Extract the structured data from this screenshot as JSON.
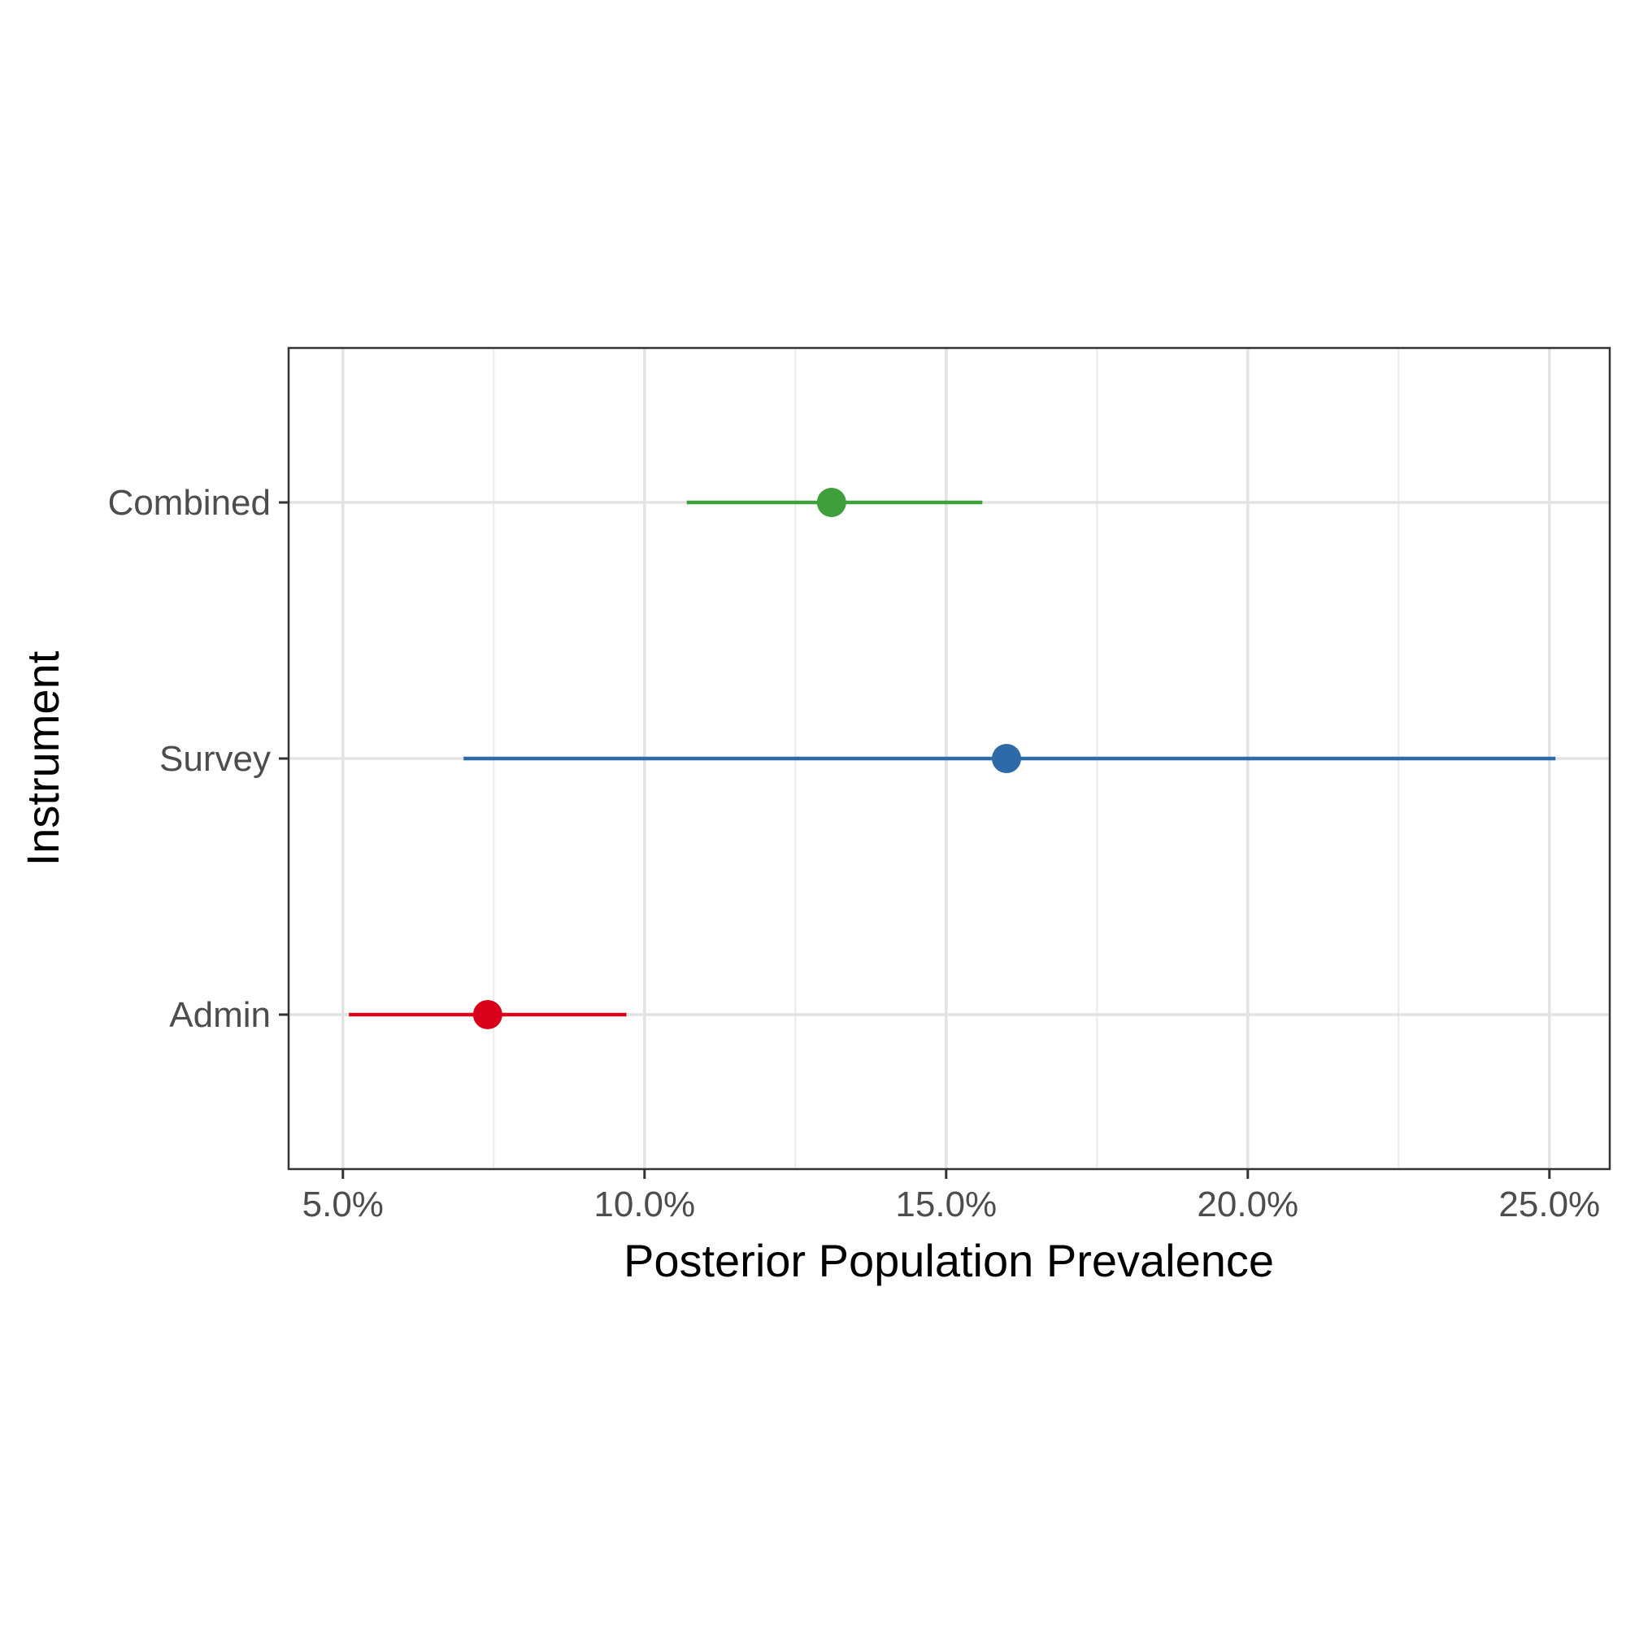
{
  "chart_data": {
    "type": "pointrange",
    "xlabel": "Posterior Population Prevalence",
    "ylabel": "Instrument",
    "xlim": [
      0.041,
      0.26
    ],
    "x_ticks": [
      0.05,
      0.1,
      0.15,
      0.2,
      0.25
    ],
    "x_tick_labels": [
      "5.0%",
      "10.0%",
      "15.0%",
      "20.0%",
      "25.0%"
    ],
    "x_minor_ticks": [
      0.075,
      0.125,
      0.175,
      0.225
    ],
    "categories": [
      "Combined",
      "Survey",
      "Admin"
    ],
    "grid": true,
    "series": [
      {
        "category": "Combined",
        "estimate": 0.131,
        "lower": 0.107,
        "upper": 0.156,
        "color": "#3f9f3a"
      },
      {
        "category": "Survey",
        "estimate": 0.16,
        "lower": 0.07,
        "upper": 0.251,
        "color": "#2e6aa8"
      },
      {
        "category": "Admin",
        "estimate": 0.074,
        "lower": 0.051,
        "upper": 0.097,
        "color": "#d9001b"
      }
    ]
  }
}
